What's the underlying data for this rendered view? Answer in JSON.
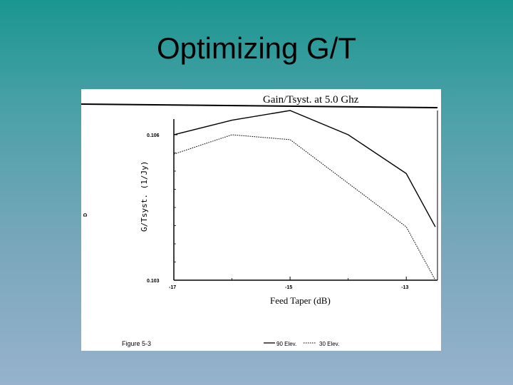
{
  "slide": {
    "title": "Optimizing G/T"
  },
  "figure": {
    "caption": "Figure 5-3",
    "margin_mark": "D"
  },
  "chart_data": {
    "type": "line",
    "title": "Gain/Tsyst. at 5.0 Ghz",
    "xlabel": "Feed Taper (dB)",
    "ylabel": "G/Tsyst. (1/Jy)",
    "xlim": [
      -17,
      -12.5
    ],
    "ylim": [
      0.103,
      0.106
    ],
    "x_ticks": [
      "-17",
      "-15",
      "-13"
    ],
    "y_ticks": [
      "0.106",
      "0.103"
    ],
    "series": [
      {
        "name": "90 Elev.",
        "style": "solid",
        "x": [
          -17,
          -16,
          -15,
          -14,
          -13,
          -12.5
        ],
        "y": [
          0.106,
          0.1063,
          0.1065,
          0.106,
          0.1052,
          0.1041
        ]
      },
      {
        "name": "30 Elev.",
        "style": "dotted",
        "x": [
          -17,
          -16,
          -15,
          -14,
          -13,
          -12.5
        ],
        "y": [
          0.1056,
          0.106,
          0.1059,
          0.105,
          0.1041,
          0.103
        ]
      }
    ],
    "grid": false,
    "legend": "bottom"
  }
}
